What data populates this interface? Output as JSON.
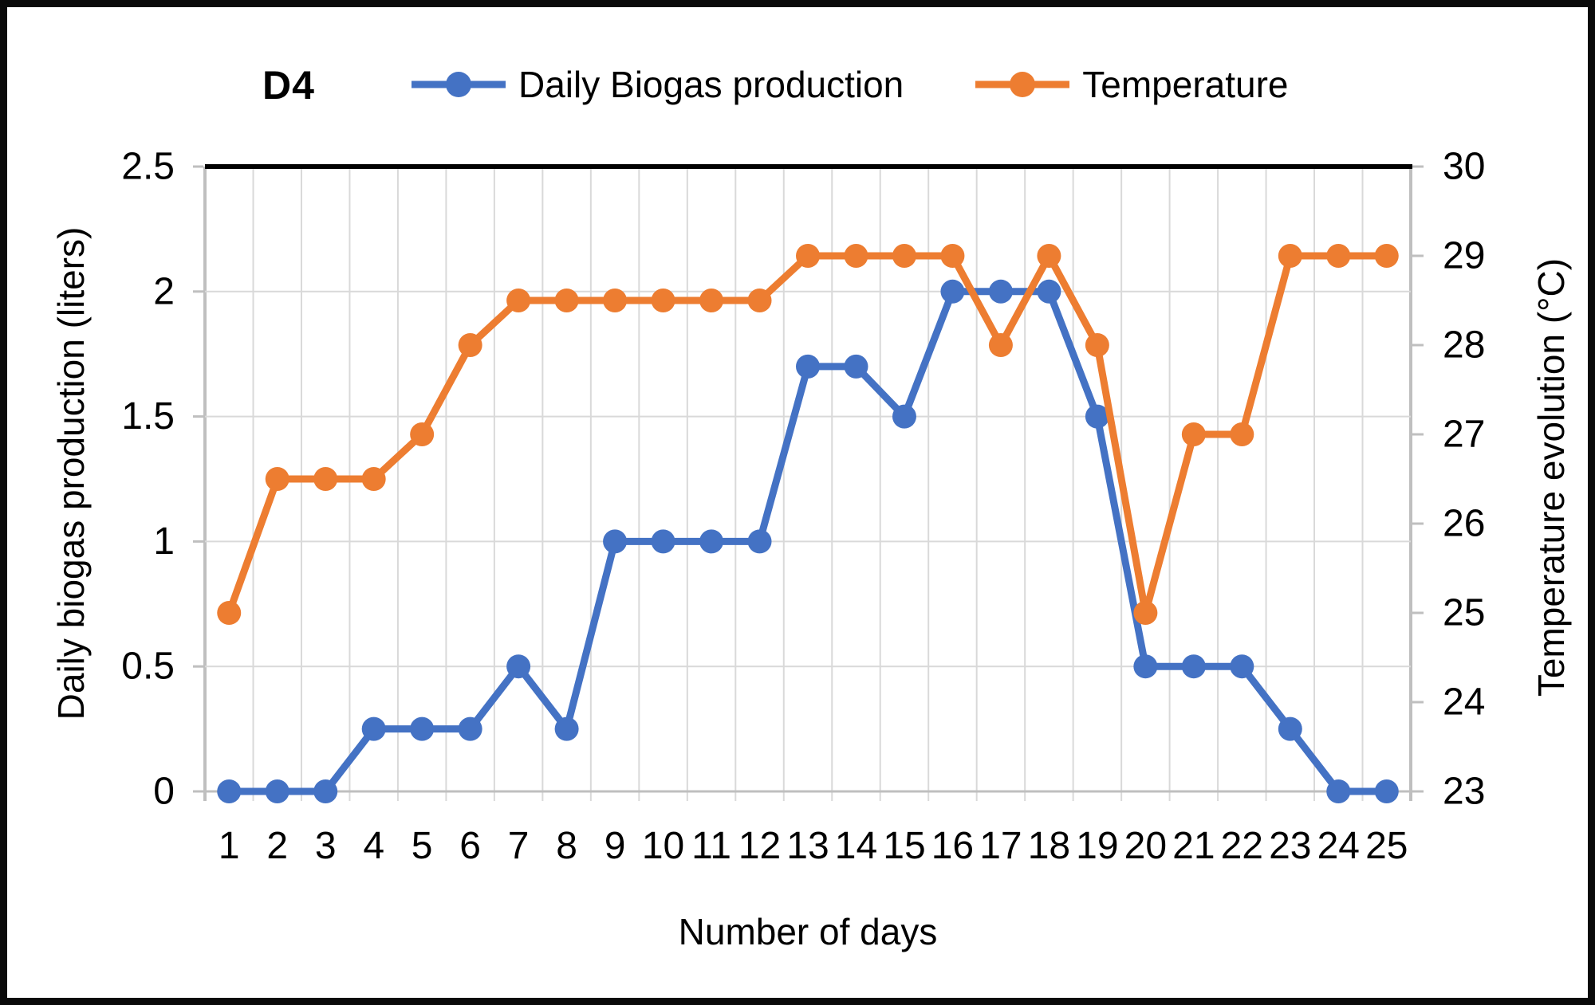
{
  "title": "D4",
  "legend": {
    "items": [
      {
        "label": "Daily Biogas production",
        "color": "#4472C4"
      },
      {
        "label": "Temperature",
        "color": "#ED7D31"
      }
    ]
  },
  "chart_data": {
    "type": "line",
    "title": "D4",
    "xlabel": "Number of days",
    "ylabel_left": "Daily biogas production (liters)",
    "ylabel_right": "Temperature evolution (°C)",
    "categories": [
      1,
      2,
      3,
      4,
      5,
      6,
      7,
      8,
      9,
      10,
      11,
      12,
      13,
      14,
      15,
      16,
      17,
      18,
      19,
      20,
      21,
      22,
      23,
      24,
      25
    ],
    "ylim_left": [
      0,
      2.5
    ],
    "yticks_left": [
      0,
      0.5,
      1,
      1.5,
      2,
      2.5
    ],
    "ytick_labels_left": [
      "0",
      "0.5",
      "1",
      "1.5",
      "2",
      "2.5"
    ],
    "ylim_right": [
      23,
      30
    ],
    "yticks_right": [
      23,
      24,
      25,
      26,
      27,
      28,
      29,
      30
    ],
    "ytick_labels_right": [
      "23",
      "24",
      "25",
      "26",
      "27",
      "28",
      "29",
      "30"
    ],
    "grid": true,
    "legend_position": "top",
    "series": [
      {
        "name": "Daily Biogas production",
        "axis": "left",
        "color": "#4472C4",
        "values": [
          0,
          0,
          0,
          0.25,
          0.25,
          0.25,
          0.5,
          0.25,
          1,
          1,
          1,
          1,
          1.7,
          1.7,
          1.5,
          2,
          2,
          2,
          1.5,
          0.5,
          0.5,
          0.5,
          0.25,
          0,
          0
        ]
      },
      {
        "name": "Temperature",
        "axis": "right",
        "color": "#ED7D31",
        "values": [
          25,
          26.5,
          26.5,
          26.5,
          27,
          28,
          28.5,
          28.5,
          28.5,
          28.5,
          28.5,
          28.5,
          29,
          29,
          29,
          29,
          28,
          29,
          28,
          25,
          27,
          27,
          29,
          29,
          29
        ]
      }
    ],
    "style": {
      "gridline_color": "#D9D9D9",
      "axis_line_color": "#BFBFBF",
      "top_border_color": "#000000",
      "tick_label_color": "#000000"
    }
  }
}
